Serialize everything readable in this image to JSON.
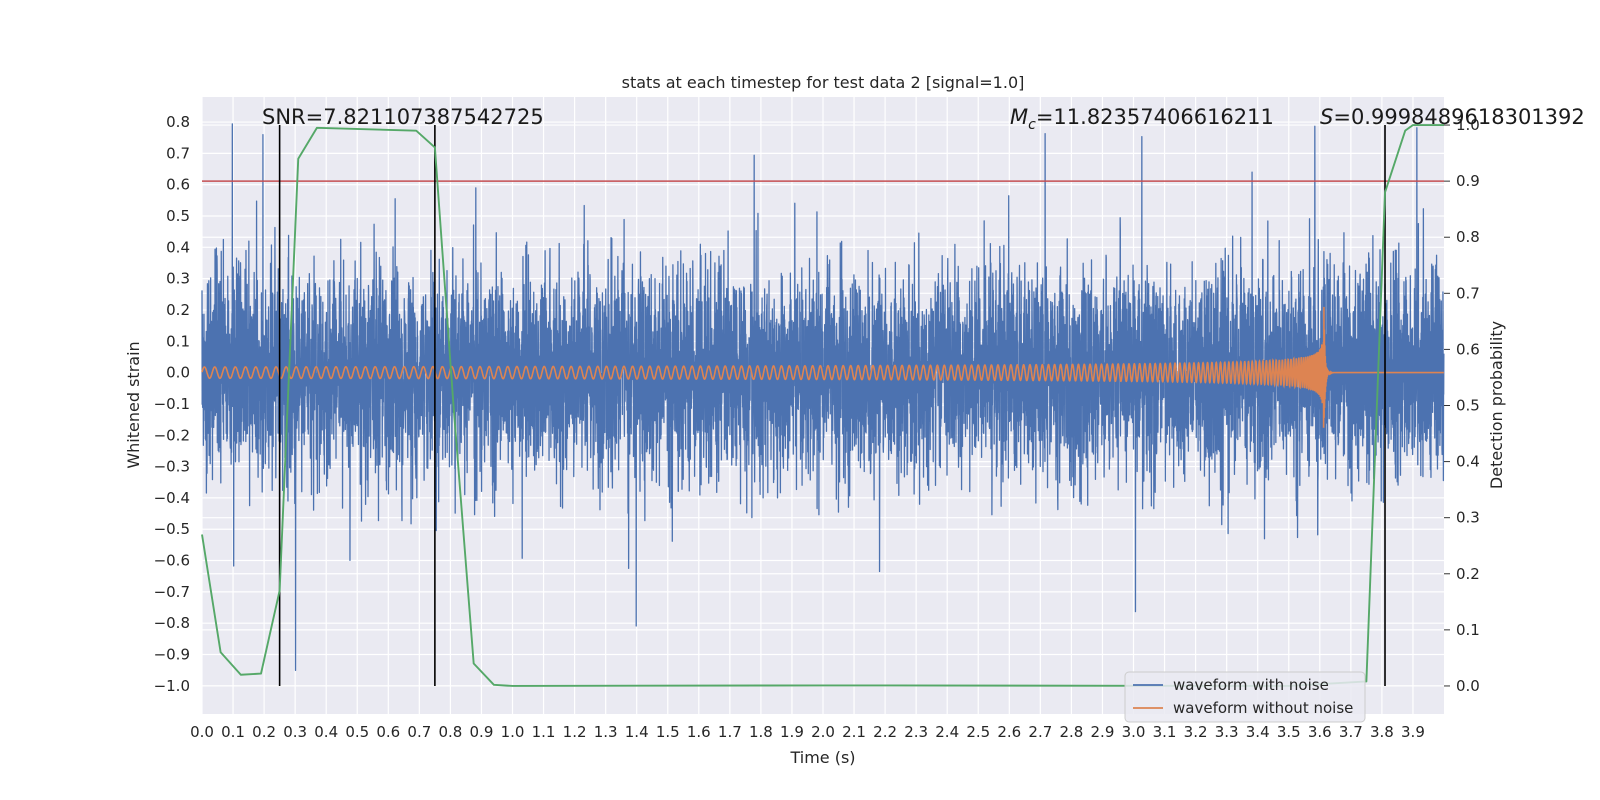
{
  "chart_data": {
    "type": "line",
    "title": "stats at each timestep for test data 2 [signal=1.0]",
    "xlabel": "Time (s)",
    "ylabel": "Whitened strain",
    "y2label": "Detection probability",
    "xlim": [
      0.0,
      4.0
    ],
    "ylim": [
      -1.09,
      0.88
    ],
    "y2lim": [
      -0.05,
      1.05
    ],
    "grid": true,
    "x_ticks": [
      "0.0",
      "0.1",
      "0.2",
      "0.3",
      "0.4",
      "0.5",
      "0.6",
      "0.7",
      "0.8",
      "0.9",
      "1.0",
      "1.1",
      "1.2",
      "1.3",
      "1.4",
      "1.5",
      "1.6",
      "1.7",
      "1.8",
      "1.9",
      "2.0",
      "2.1",
      "2.2",
      "2.3",
      "2.4",
      "2.5",
      "2.6",
      "2.7",
      "2.8",
      "2.9",
      "3.0",
      "3.1",
      "3.2",
      "3.3",
      "3.4",
      "3.5",
      "3.6",
      "3.7",
      "3.8",
      "3.9"
    ],
    "y_ticks": [
      "0.8",
      "0.7",
      "0.6",
      "0.5",
      "0.4",
      "0.3",
      "0.2",
      "0.1",
      "0.0",
      "−0.1",
      "−0.2",
      "−0.3",
      "−0.4",
      "−0.5",
      "−0.6",
      "−0.7",
      "−0.8",
      "−0.9",
      "−1.0"
    ],
    "y2_ticks": [
      "1.0",
      "0.9",
      "0.8",
      "0.7",
      "0.6",
      "0.5",
      "0.4",
      "0.3",
      "0.2",
      "0.1",
      "0.0"
    ],
    "annotations": {
      "snr": "SNR=7.821107387542725",
      "mc_symbol": "M",
      "mc_subscript": "c",
      "mc_value": "=11.82357406616211",
      "s_symbol": "S",
      "s_value": "=0.9998489618301392"
    },
    "threshold_probability": 0.9,
    "vertical_lines_s": [
      0.25,
      0.75,
      3.81
    ],
    "detection_probability": {
      "name": "detection probability",
      "x": [
        0.0,
        0.06,
        0.125,
        0.19,
        0.25,
        0.31,
        0.37,
        0.69,
        0.75,
        0.81,
        0.875,
        0.94,
        1.0,
        2.0,
        3.5,
        3.75,
        3.81,
        3.875,
        3.9,
        4.0
      ],
      "y": [
        0.27,
        0.06,
        0.02,
        0.022,
        0.17,
        0.94,
        0.995,
        0.99,
        0.96,
        0.5,
        0.04,
        0.002,
        0.0,
        0.001,
        0.0,
        0.008,
        0.88,
        0.99,
        1.0,
        1.0
      ]
    },
    "series": [
      {
        "name": "waveform with noise",
        "color": "#4c72b0",
        "description": "whitened noisy strain, roughly within [-1.0, 0.8], sampled at 2048 Hz"
      },
      {
        "name": "waveform without noise",
        "color": "#dd8452",
        "description": "chirp signal, amplitude ~0.02 growing to ~0.25, merger near 3.61 s"
      }
    ],
    "colors": {
      "noisy": "#4c72b0",
      "clean": "#dd8452",
      "probability": "#55a868",
      "threshold": "#c44e52",
      "vlines": "#000000",
      "plot_bg": "#eaeaf2",
      "grid": "#ffffff"
    },
    "legend": {
      "position": "lower-right",
      "entries": [
        "waveform with noise",
        "waveform without noise"
      ]
    }
  }
}
